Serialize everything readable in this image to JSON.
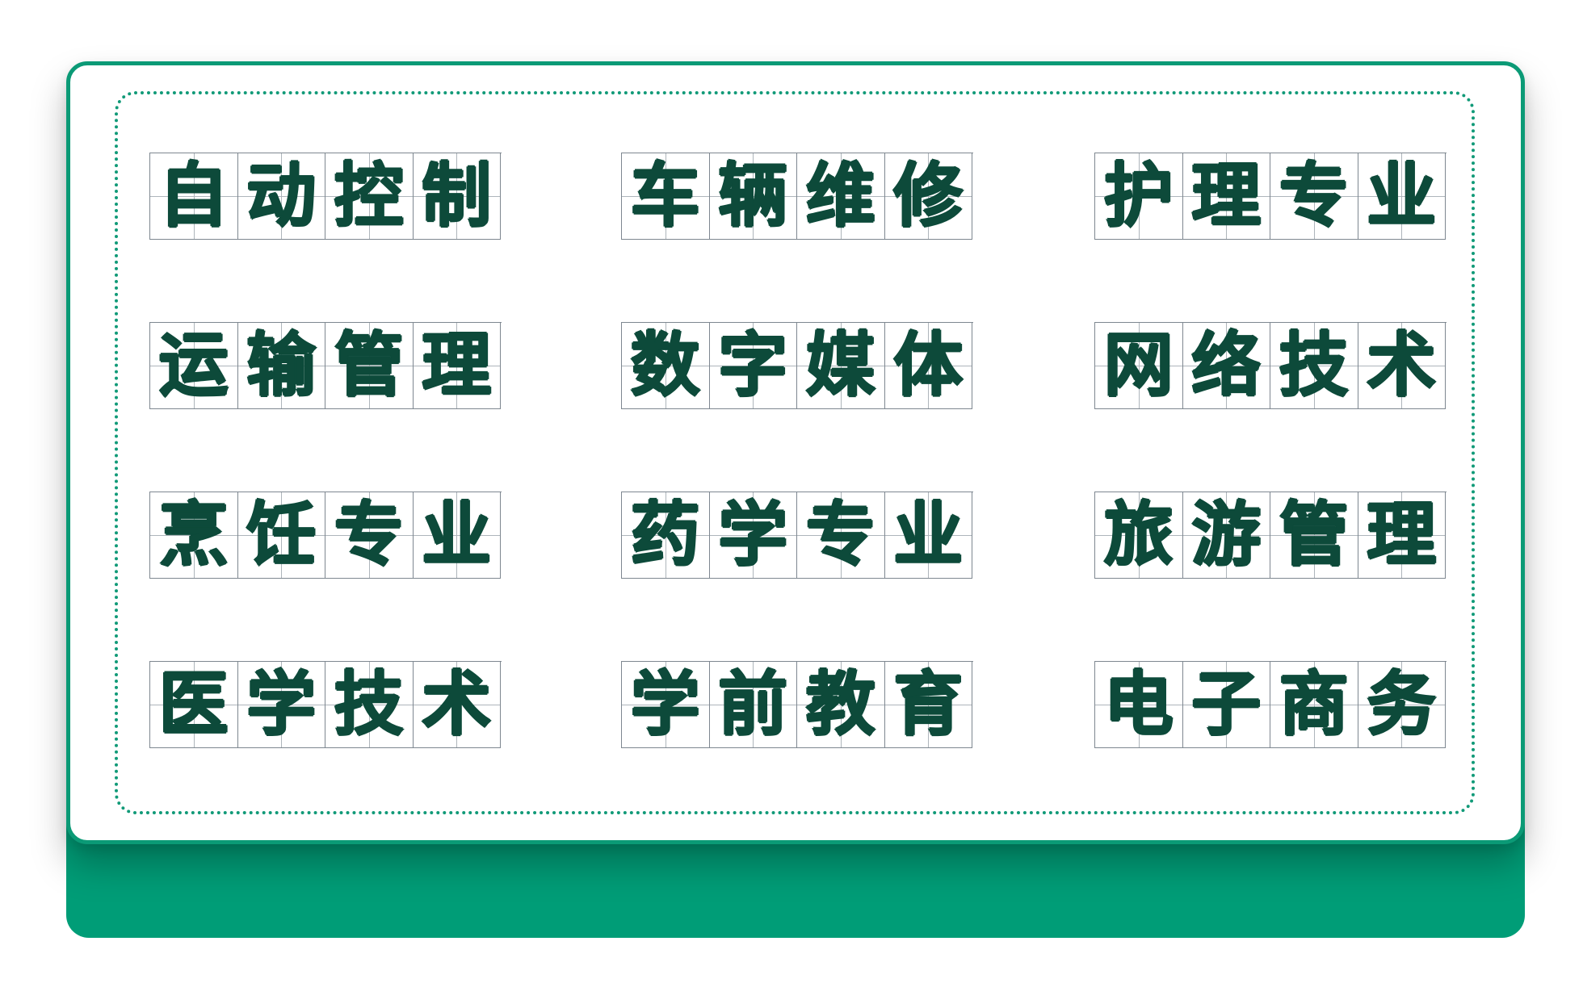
{
  "colors": {
    "accent": "#009d77",
    "ink": "#0d4a3a",
    "grid_line": "#7e8790"
  },
  "majors": [
    [
      "自",
      "动",
      "控",
      "制"
    ],
    [
      "车",
      "辆",
      "维",
      "修"
    ],
    [
      "护",
      "理",
      "专",
      "业"
    ],
    [
      "运",
      "输",
      "管",
      "理"
    ],
    [
      "数",
      "字",
      "媒",
      "体"
    ],
    [
      "网",
      "络",
      "技",
      "术"
    ],
    [
      "烹",
      "饪",
      "专",
      "业"
    ],
    [
      "药",
      "学",
      "专",
      "业"
    ],
    [
      "旅",
      "游",
      "管",
      "理"
    ],
    [
      "医",
      "学",
      "技",
      "术"
    ],
    [
      "学",
      "前",
      "教",
      "育"
    ],
    [
      "电",
      "子",
      "商",
      "务"
    ]
  ]
}
